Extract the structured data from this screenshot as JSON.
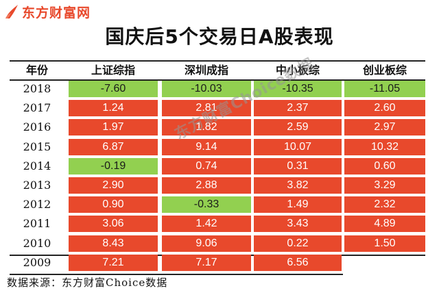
{
  "logo": {
    "text": "东方财富网",
    "icon": "rising-flame-mark-icon"
  },
  "title": "国庆后5个交易日A股表现",
  "table": {
    "headers": [
      "年份",
      "上证综指",
      "深圳成指",
      "中小板综",
      "创业板综"
    ],
    "rows": [
      {
        "year": "2018",
        "values": [
          "-7.60",
          "-10.03",
          "-10.35",
          "-11.05"
        ]
      },
      {
        "year": "2017",
        "values": [
          "1.24",
          "2.81",
          "2.37",
          "2.60"
        ]
      },
      {
        "year": "2016",
        "values": [
          "1.97",
          "1.82",
          "2.59",
          "2.97"
        ]
      },
      {
        "year": "2015",
        "values": [
          "6.87",
          "9.14",
          "10.07",
          "10.32"
        ]
      },
      {
        "year": "2014",
        "values": [
          "-0.19",
          "0.74",
          "0.31",
          "0.60"
        ]
      },
      {
        "year": "2013",
        "values": [
          "2.90",
          "2.88",
          "3.82",
          "3.29"
        ]
      },
      {
        "year": "2012",
        "values": [
          "0.90",
          "-0.33",
          "1.49",
          "2.32"
        ]
      },
      {
        "year": "2011",
        "values": [
          "3.06",
          "1.42",
          "3.43",
          "4.89"
        ]
      },
      {
        "year": "2010",
        "values": [
          "8.43",
          "9.06",
          "0.22",
          "1.50"
        ]
      },
      {
        "year": "2009",
        "values": [
          "7.21",
          "7.17",
          "6.56",
          ""
        ]
      }
    ]
  },
  "colors": {
    "positive": "#e8492c",
    "negative": "#92d050",
    "brand": "#e8492c"
  },
  "source": "数据来源：东方财富Choice数据",
  "watermark": "东方财富Choice数据"
}
